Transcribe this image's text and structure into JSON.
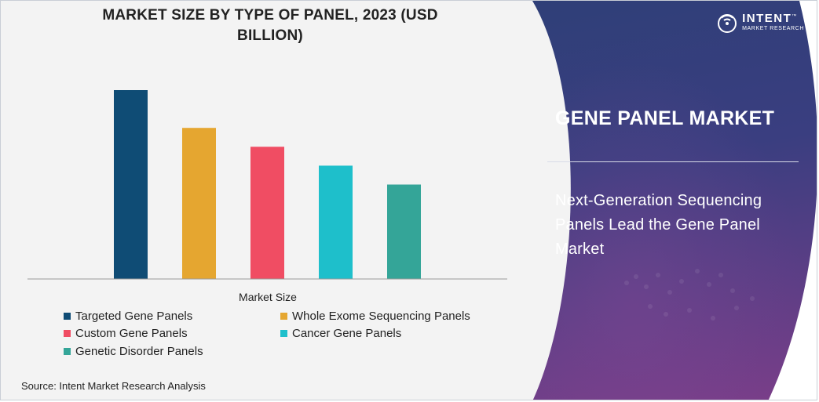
{
  "chart_data": {
    "type": "bar",
    "title": "MARKET SIZE BY TYPE OF PANEL, 2023 (USD BILLION)",
    "xlabel": "Market Size",
    "ylabel": "",
    "grid": false,
    "legend_position": "bottom",
    "categories": [
      "Targeted Gene Panels",
      "Whole Exome Sequencing Panels",
      "Custom Gene Panels",
      "Cancer Gene Panels",
      "Genetic Disorder Panels"
    ],
    "values": [
      1.0,
      0.8,
      0.7,
      0.6,
      0.5
    ],
    "colors": [
      "#0f4c75",
      "#e5a630",
      "#f04d63",
      "#1ebfcb",
      "#34a598"
    ],
    "ylim": [
      0,
      1.0
    ]
  },
  "legend": [
    {
      "label": "Targeted Gene Panels",
      "color": "#0f4c75"
    },
    {
      "label": "Whole Exome Sequencing Panels",
      "color": "#e5a630"
    },
    {
      "label": "Custom Gene Panels",
      "color": "#f04d63"
    },
    {
      "label": "Cancer Gene Panels",
      "color": "#1ebfcb"
    },
    {
      "label": "Genetic Disorder Panels",
      "color": "#34a598"
    }
  ],
  "source": "Source: Intent Market Research Analysis",
  "brand": {
    "name": "INTENT",
    "subtitle": "MARKET RESEARCH",
    "trademark": "™"
  },
  "market_title": "GENE PANEL MARKET",
  "headline": "Next-Generation Sequencing Panels Lead the Gene Panel Market"
}
